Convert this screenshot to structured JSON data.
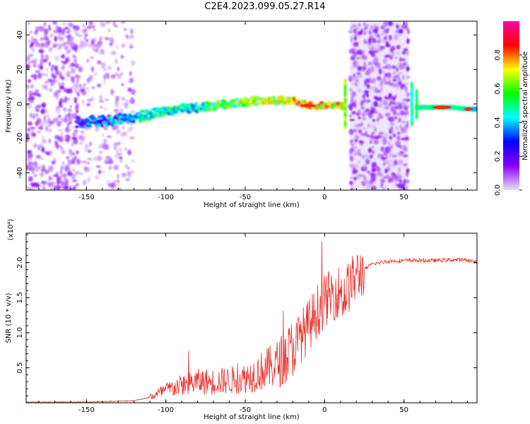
{
  "title": "C2E4.2023.099.05.27.R14",
  "colors": {
    "snr_line": "#e8302c",
    "scatter_noise": "#8a2be2"
  },
  "chart_data": [
    {
      "type": "heatmap",
      "xlabel": "Height of straight line (km)",
      "ylabel": "Frequency (Hz)",
      "xlim": [
        -188,
        96
      ],
      "ylim": [
        -50,
        48
      ],
      "xticks": [
        -150,
        -100,
        -50,
        0,
        50
      ],
      "yticks": [
        -40,
        -20,
        0,
        20,
        40
      ],
      "colorbar": {
        "label": "Normalized spectral amplitude",
        "range": [
          0.0,
          1.0
        ],
        "ticks": [
          0.0,
          0.2,
          0.4,
          0.6,
          0.8
        ],
        "tick_labels": [
          "0.0",
          "0.2",
          "0.4",
          "0.6",
          "0.8"
        ],
        "colormap": [
          "#e8e0f8",
          "#8a00ff",
          "#0000ff",
          "#00ffff",
          "#00ff00",
          "#ffff00",
          "#ff0000",
          "#ff00aa"
        ]
      },
      "features": [
        {
          "name": "signal-track",
          "x": [
            -155,
            -140,
            -120,
            -100,
            -80,
            -60,
            -40,
            -20,
            -10,
            0,
            10
          ],
          "y": [
            -11,
            -10,
            -8,
            -4,
            -2,
            0,
            2,
            2,
            -1,
            -1,
            -1
          ]
        },
        {
          "name": "band-tail",
          "x": [
            60,
            70,
            80,
            90,
            96
          ],
          "y": [
            -2,
            -2,
            -2,
            -3,
            -3
          ]
        }
      ]
    },
    {
      "type": "line",
      "xlabel": "Height of straight line (km)",
      "ylabel": "SNR (10 * v/v)",
      "scale_label": "(x10⁴)",
      "xlim": [
        -188,
        96
      ],
      "ylim": [
        0,
        2.42
      ],
      "xticks": [
        -150,
        -100,
        -50,
        0,
        50
      ],
      "yticks": [
        0.5,
        1.0,
        1.5,
        2.0
      ],
      "series": [
        {
          "x": [
            -188,
            -150,
            -120,
            -110,
            -100,
            -90,
            -80,
            -70,
            -60,
            -50,
            -40,
            -30,
            -20,
            -15,
            -10,
            -5,
            0,
            5,
            10,
            12,
            15,
            20,
            25,
            30,
            40,
            50,
            60,
            70,
            80,
            90,
            96
          ],
          "y": [
            0.01,
            0.01,
            0.03,
            0.08,
            0.18,
            0.25,
            0.3,
            0.3,
            0.32,
            0.35,
            0.45,
            0.55,
            0.75,
            0.95,
            1.1,
            1.3,
            1.45,
            1.55,
            1.6,
            1.5,
            1.65,
            1.8,
            1.9,
            1.98,
            2.02,
            2.03,
            2.03,
            2.03,
            2.04,
            2.04,
            2.0
          ]
        }
      ]
    }
  ]
}
